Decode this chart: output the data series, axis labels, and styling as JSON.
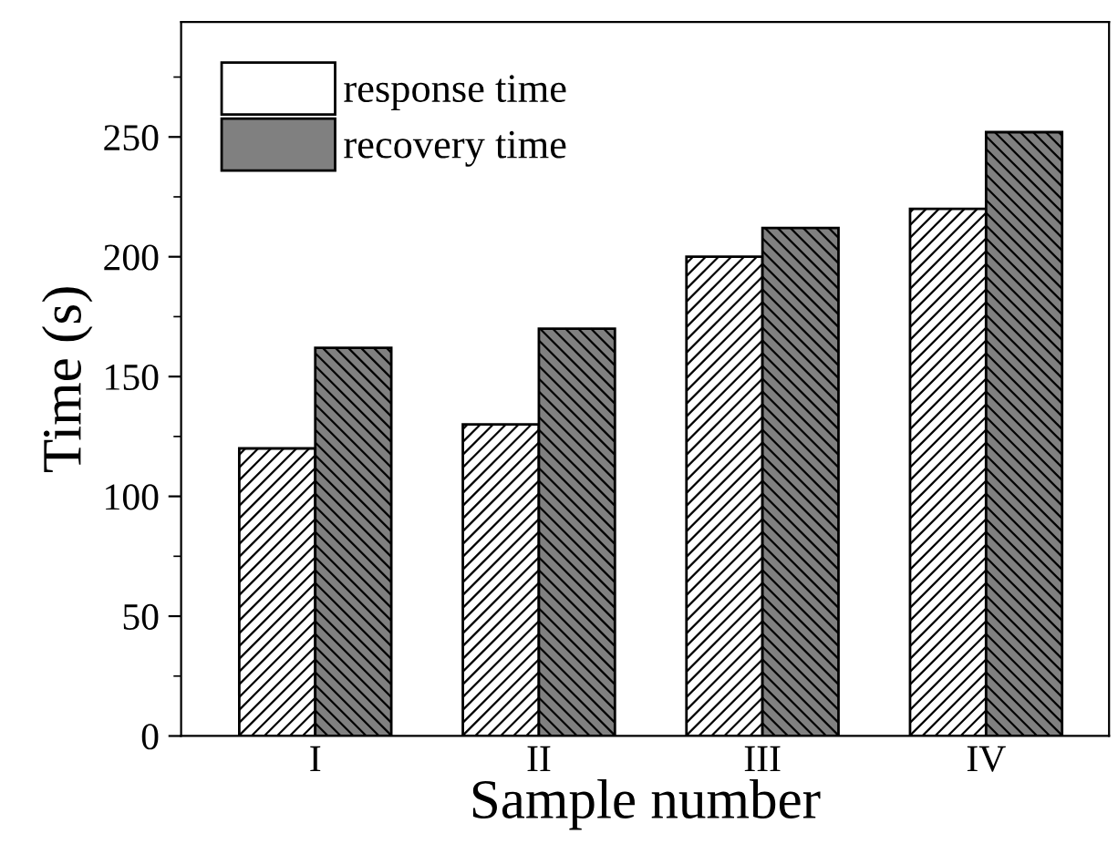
{
  "chart_data": {
    "type": "bar",
    "xlabel": "Sample number",
    "ylabel": "Time (s)",
    "categories": [
      "I",
      "II",
      "III",
      "IV"
    ],
    "series": [
      {
        "name": "response time",
        "color": "#ffffff",
        "values": [
          120,
          130,
          200,
          220
        ]
      },
      {
        "name": "recovery time",
        "color": "#808080",
        "values": [
          162,
          170,
          212,
          252
        ]
      }
    ],
    "ylim": [
      0,
      298
    ],
    "yticks": [
      0,
      50,
      100,
      150,
      200,
      250
    ],
    "grid": false,
    "legend": "top left"
  }
}
